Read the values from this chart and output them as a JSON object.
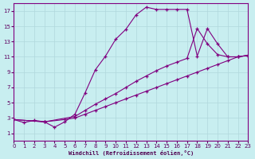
{
  "xlabel": "Windchill (Refroidissement éolien,°C)",
  "bg_color": "#c8eef0",
  "line_color": "#800080",
  "grid_color": "#b0d8dc",
  "xmin": 0,
  "xmax": 23,
  "ymin": 0,
  "ymax": 18,
  "yticks": [
    1,
    3,
    5,
    7,
    9,
    11,
    13,
    15,
    17
  ],
  "xticks": [
    0,
    1,
    2,
    3,
    4,
    5,
    6,
    7,
    8,
    9,
    10,
    11,
    12,
    13,
    14,
    15,
    16,
    17,
    18,
    19,
    20,
    21,
    22,
    23
  ],
  "line1_x": [
    0,
    1,
    2,
    3,
    4,
    5,
    6,
    7,
    8,
    9,
    10,
    11,
    12,
    13,
    14,
    15,
    16,
    17,
    18,
    19,
    20,
    21,
    22,
    23
  ],
  "line1_y": [
    2.8,
    2.4,
    2.7,
    2.5,
    1.8,
    2.5,
    3.5,
    6.3,
    9.3,
    11.1,
    13.3,
    14.6,
    16.5,
    17.5,
    17.2,
    17.2,
    17.2,
    17.2,
    11.1,
    14.7,
    12.7,
    11.0,
    11.0,
    11.2
  ],
  "line2_x": [
    0,
    3,
    6,
    7,
    8,
    9,
    10,
    11,
    12,
    13,
    14,
    15,
    16,
    17,
    18,
    19,
    20,
    21,
    22,
    23
  ],
  "line2_y": [
    2.8,
    2.5,
    3.2,
    4.0,
    4.8,
    5.5,
    6.2,
    7.0,
    7.8,
    8.5,
    9.2,
    9.8,
    10.3,
    10.8,
    14.7,
    12.7,
    11.3,
    11.0,
    11.0,
    11.2
  ],
  "line3_x": [
    0,
    3,
    5,
    6,
    7,
    8,
    9,
    10,
    11,
    12,
    13,
    14,
    15,
    16,
    17,
    18,
    19,
    20,
    21,
    22,
    23
  ],
  "line3_y": [
    2.8,
    2.5,
    2.8,
    3.0,
    3.5,
    4.0,
    4.5,
    5.0,
    5.5,
    6.0,
    6.5,
    7.0,
    7.5,
    8.0,
    8.5,
    9.0,
    9.5,
    10.0,
    10.5,
    11.0,
    11.2
  ]
}
